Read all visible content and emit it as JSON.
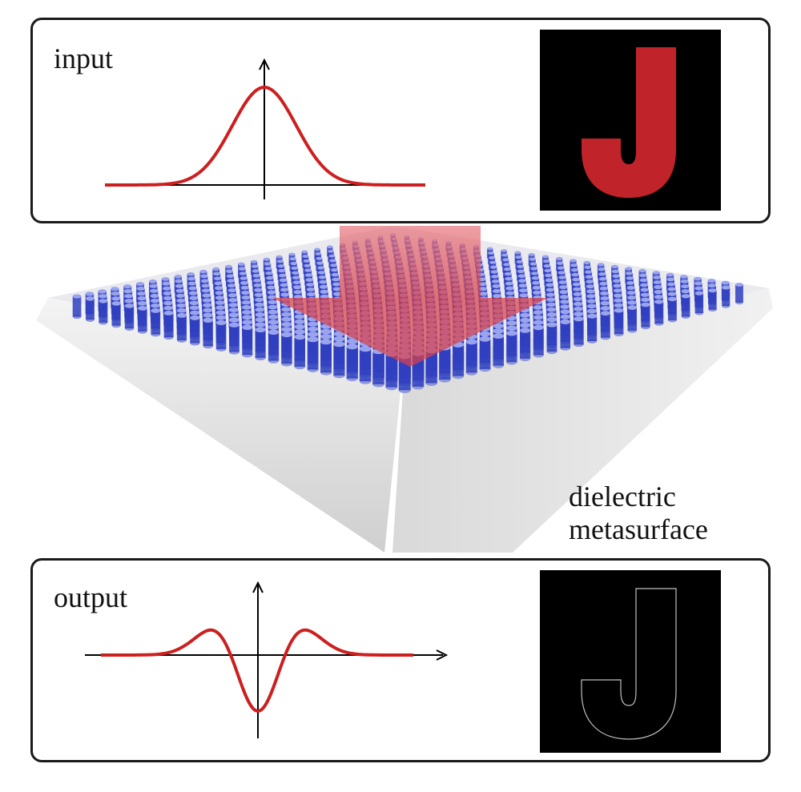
{
  "input_panel": {
    "label": "input",
    "letter": "J",
    "curve_color": "#cc1f1f",
    "letter_color": "#c0242a",
    "profile": "gaussian"
  },
  "output_panel": {
    "label": "output",
    "letter": "J",
    "curve_color": "#cc1f1f",
    "letter_color": "#bfbfbf",
    "profile": "second-derivative-of-gaussian (edge detection)"
  },
  "metasurface": {
    "caption_line1": "dielectric",
    "caption_line2": "metasurface",
    "pillar_color": "#2f3fc0",
    "substrate_color": "#e6e6e6",
    "arrow_color": "#d8424b",
    "arrow_icon": "arrow-down-icon"
  }
}
